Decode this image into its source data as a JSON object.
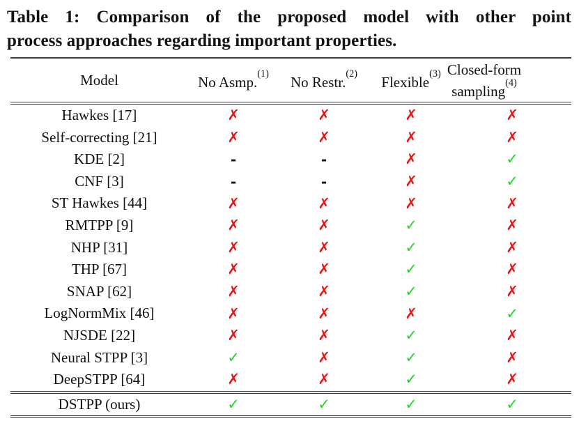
{
  "caption": {
    "line1": "Table 1: Comparison of the proposed model with other point",
    "line2": "process approaches regarding important properties."
  },
  "columns": [
    {
      "label": "Model"
    },
    {
      "label": "No Asmp.",
      "sup": "(1)"
    },
    {
      "label": "No Restr.",
      "sup": "(2)"
    },
    {
      "label": "Flexible",
      "sup": "(3)"
    },
    {
      "label_line1": "Closed-form",
      "label_line2": "sampling",
      "sup": "(4)"
    }
  ],
  "marks": {
    "yes": "✓",
    "no": "✗",
    "na": "-"
  },
  "colors": {
    "check_green": "#1fd41f",
    "cross_red": "#ee1111",
    "rule_gray": "#3a3a3a",
    "text_black": "#141414"
  },
  "rows": [
    {
      "model": "Hawkes [17]",
      "cells": [
        "✗",
        "✗",
        "✗",
        "✗"
      ]
    },
    {
      "model": "Self-correcting [21]",
      "cells": [
        "✗",
        "✗",
        "✗",
        "✗"
      ]
    },
    {
      "model": "KDE [2]",
      "cells": [
        "-",
        "-",
        "✗",
        "✓"
      ]
    },
    {
      "model": "CNF [3]",
      "cells": [
        "-",
        "-",
        "✗",
        "✓"
      ]
    },
    {
      "model": "ST Hawkes [44]",
      "cells": [
        "✗",
        "✗",
        "✗",
        "✗"
      ]
    },
    {
      "model": "RMTPP [9]",
      "cells": [
        "✗",
        "✗",
        "✓",
        "✗"
      ]
    },
    {
      "model": "NHP [31]",
      "cells": [
        "✗",
        "✗",
        "✓",
        "✗"
      ]
    },
    {
      "model": "THP [67]",
      "cells": [
        "✗",
        "✗",
        "✓",
        "✗"
      ]
    },
    {
      "model": "SNAP [62]",
      "cells": [
        "✗",
        "✗",
        "✓",
        "✗"
      ]
    },
    {
      "model": "LogNormMix [46]",
      "cells": [
        "✗",
        "✗",
        "✗",
        "✓"
      ]
    },
    {
      "model": "NJSDE [22]",
      "cells": [
        "✗",
        "✗",
        "✓",
        "✗"
      ]
    },
    {
      "model": "Neural STPP [3]",
      "cells": [
        "✓",
        "✗",
        "✓",
        "✗"
      ]
    },
    {
      "model": "DeepSTPP [64]",
      "cells": [
        "✗",
        "✗",
        "✓",
        "✗"
      ]
    }
  ],
  "ours_row": {
    "model": "DSTPP (ours)",
    "cells": [
      "✓",
      "✓",
      "✓",
      "✓"
    ]
  }
}
